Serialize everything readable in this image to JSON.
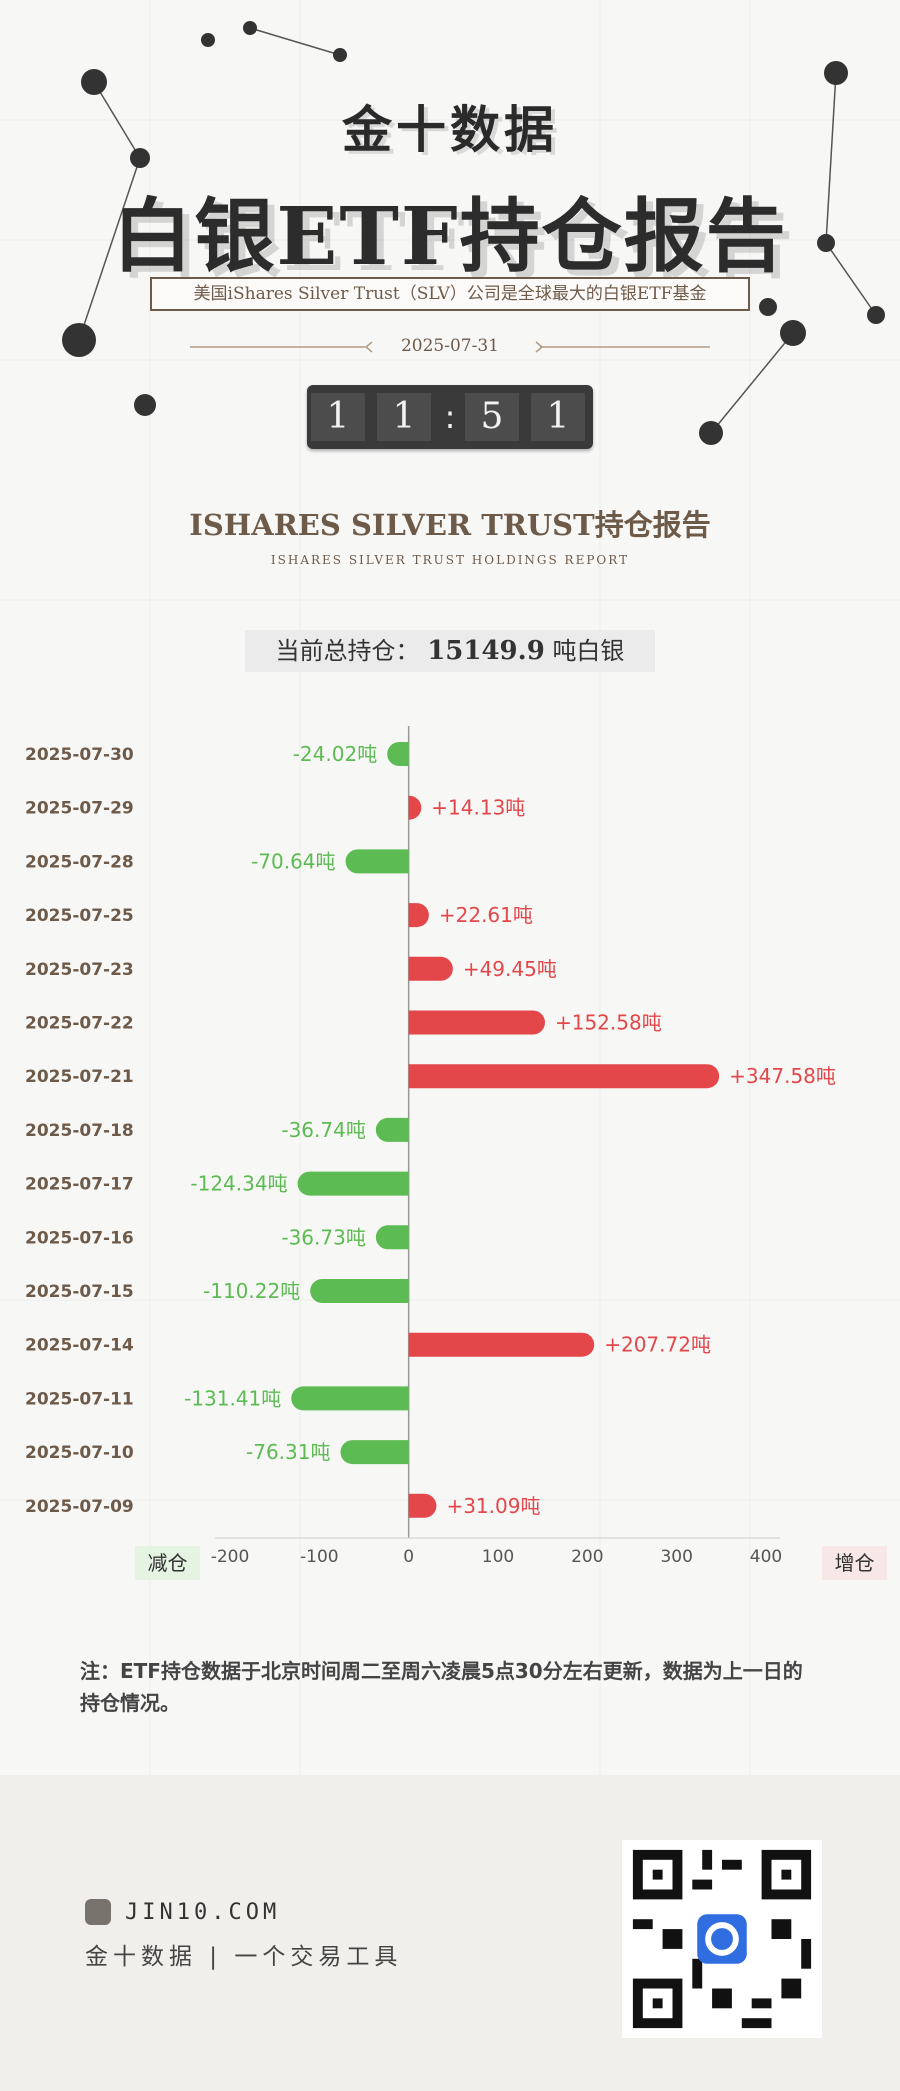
{
  "header": {
    "brand": "金十数据",
    "title": "白银ETF持仓报告",
    "subtitle": "美国iShares Silver Trust（SLV）公司是全球最大的白银ETF基金",
    "date": "2025-07-31",
    "timer": [
      "1",
      "1",
      ":",
      "5",
      "1"
    ]
  },
  "section": {
    "title": "ISHARES SILVER TRUST持仓报告",
    "subtitle": "ISHARES SILVER TRUST HOLDINGS REPORT"
  },
  "total": {
    "label": "当前总持仓：",
    "value": "15149.9",
    "unit": "吨白银"
  },
  "chart_data": {
    "type": "bar",
    "orientation": "horizontal",
    "categories": [
      "2025-07-30",
      "2025-07-29",
      "2025-07-28",
      "2025-07-25",
      "2025-07-23",
      "2025-07-22",
      "2025-07-21",
      "2025-07-18",
      "2025-07-17",
      "2025-07-16",
      "2025-07-15",
      "2025-07-14",
      "2025-07-11",
      "2025-07-10",
      "2025-07-09"
    ],
    "values": [
      -24.02,
      14.13,
      -70.64,
      22.61,
      49.45,
      152.58,
      347.58,
      -36.74,
      -124.34,
      -36.73,
      -110.22,
      207.72,
      -131.41,
      -76.31,
      31.09
    ],
    "labels": [
      "-24.02吨",
      "+14.13吨",
      "-70.64吨",
      "+22.61吨",
      "+49.45吨",
      "+152.58吨",
      "+347.58吨",
      "-36.74吨",
      "-124.34吨",
      "-36.73吨",
      "-110.22吨",
      "+207.72吨",
      "-131.41吨",
      "-76.31吨",
      "+31.09吨"
    ],
    "xticks": [
      "-200",
      "-100",
      "0",
      "100",
      "200",
      "300",
      "400"
    ],
    "xlim": [
      -200,
      400
    ],
    "left_label": "减仓",
    "right_label": "增仓",
    "colors": {
      "positive": "#e3474a",
      "negative": "#5cbb52",
      "date": "#6e5a49"
    }
  },
  "note": "注：ETF持仓数据于北京时间周二至周六凌晨5点30分左右更新，数据为上一日的持仓情况。",
  "footer": {
    "site": "JIN10.COM",
    "slogan": "金十数据 | 一个交易工具"
  }
}
